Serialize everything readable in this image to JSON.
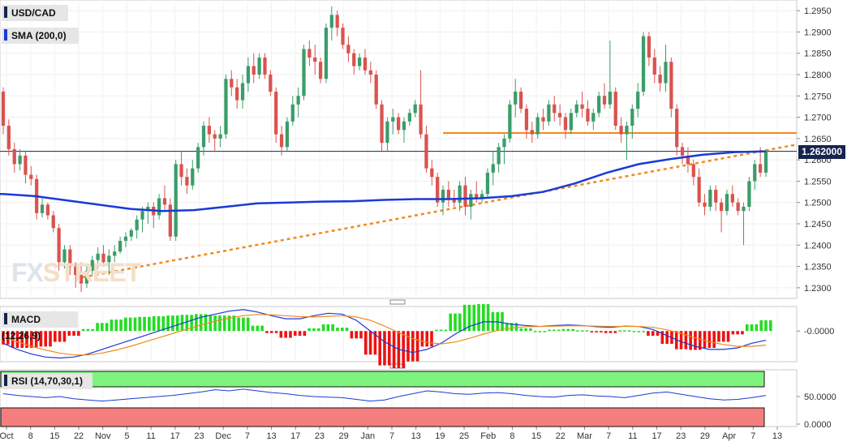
{
  "chart_data": [
    {
      "type": "candlestick",
      "title": "USD/CAD",
      "indicator_label": "SMA (200,0)",
      "price_tag": "1.262000",
      "ylim": [
        1.2275,
        1.2975
      ],
      "y_ticks": [
        "1.2950",
        "1.2900",
        "1.2850",
        "1.2800",
        "1.2750",
        "1.2700",
        "1.2650",
        "1.2600",
        "1.2550",
        "1.2500",
        "1.2450",
        "1.2400",
        "1.2350",
        "1.2300"
      ],
      "x_labels": [
        "Oct",
        "8",
        "15",
        "22",
        "Nov",
        "5",
        "11",
        "17",
        "23",
        "Dec",
        "7",
        "13",
        "17",
        "23",
        "29",
        "Jan",
        "7",
        "13",
        "19",
        "25",
        "Feb",
        "8",
        "15",
        "22",
        "Mar",
        "7",
        "11",
        "17",
        "23",
        "29",
        "Apr",
        "7",
        "13"
      ],
      "candles": [
        [
          1.276,
          1.277,
          1.266,
          1.268
        ],
        [
          1.268,
          1.2695,
          1.261,
          1.2625
        ],
        [
          1.2625,
          1.264,
          1.257,
          1.259
        ],
        [
          1.259,
          1.2625,
          1.2575,
          1.261
        ],
        [
          1.261,
          1.262,
          1.2545,
          1.2565
        ],
        [
          1.2565,
          1.2585,
          1.254,
          1.2555
        ],
        [
          1.2555,
          1.2565,
          1.246,
          1.2475
        ],
        [
          1.2475,
          1.251,
          1.2465,
          1.2495
        ],
        [
          1.2495,
          1.25,
          1.246,
          1.247
        ],
        [
          1.247,
          1.248,
          1.243,
          1.244
        ],
        [
          1.244,
          1.245,
          1.234,
          1.236
        ],
        [
          1.236,
          1.24,
          1.2345,
          1.239
        ],
        [
          1.239,
          1.24,
          1.233,
          1.235
        ],
        [
          1.235,
          1.236,
          1.23,
          1.233
        ],
        [
          1.233,
          1.236,
          1.229,
          1.231
        ],
        [
          1.231,
          1.235,
          1.23,
          1.234
        ],
        [
          1.234,
          1.2375,
          1.233,
          1.2365
        ],
        [
          1.2365,
          1.2395,
          1.2345,
          1.238
        ],
        [
          1.238,
          1.24,
          1.235,
          1.236
        ],
        [
          1.236,
          1.239,
          1.233,
          1.2375
        ],
        [
          1.2375,
          1.24,
          1.236,
          1.2385
        ],
        [
          1.2385,
          1.242,
          1.238,
          1.241
        ],
        [
          1.241,
          1.243,
          1.2395,
          1.242
        ],
        [
          1.242,
          1.244,
          1.241,
          1.2435
        ],
        [
          1.2435,
          1.247,
          1.2415,
          1.246
        ],
        [
          1.246,
          1.249,
          1.243,
          1.248
        ],
        [
          1.248,
          1.25,
          1.245,
          1.249
        ],
        [
          1.249,
          1.25,
          1.244,
          1.247
        ],
        [
          1.247,
          1.252,
          1.246,
          1.251
        ],
        [
          1.251,
          1.254,
          1.248,
          1.2495
        ],
        [
          1.2495,
          1.251,
          1.241,
          1.242
        ],
        [
          1.242,
          1.26,
          1.241,
          1.259
        ],
        [
          1.259,
          1.262,
          1.254,
          1.256
        ],
        [
          1.256,
          1.258,
          1.252,
          1.254
        ],
        [
          1.254,
          1.26,
          1.253,
          1.258
        ],
        [
          1.258,
          1.264,
          1.257,
          1.263
        ],
        [
          1.263,
          1.269,
          1.261,
          1.268
        ],
        [
          1.268,
          1.27,
          1.264,
          1.266
        ],
        [
          1.266,
          1.267,
          1.262,
          1.265
        ],
        [
          1.265,
          1.268,
          1.263,
          1.266
        ],
        [
          1.266,
          1.28,
          1.265,
          1.279
        ],
        [
          1.279,
          1.281,
          1.275,
          1.277
        ],
        [
          1.277,
          1.279,
          1.272,
          1.274
        ],
        [
          1.274,
          1.28,
          1.272,
          1.278
        ],
        [
          1.278,
          1.284,
          1.276,
          1.282
        ],
        [
          1.282,
          1.285,
          1.278,
          1.28
        ],
        [
          1.28,
          1.285,
          1.279,
          1.284
        ],
        [
          1.284,
          1.285,
          1.279,
          1.28
        ],
        [
          1.28,
          1.281,
          1.275,
          1.276
        ],
        [
          1.276,
          1.277,
          1.264,
          1.266
        ],
        [
          1.266,
          1.268,
          1.261,
          1.263
        ],
        [
          1.263,
          1.27,
          1.262,
          1.269
        ],
        [
          1.269,
          1.275,
          1.268,
          1.273
        ],
        [
          1.273,
          1.277,
          1.27,
          1.275
        ],
        [
          1.275,
          1.287,
          1.274,
          1.286
        ],
        [
          1.286,
          1.288,
          1.282,
          1.284
        ],
        [
          1.284,
          1.287,
          1.28,
          1.283
        ],
        [
          1.283,
          1.284,
          1.278,
          1.279
        ],
        [
          1.279,
          1.292,
          1.278,
          1.291
        ],
        [
          1.291,
          1.296,
          1.288,
          1.294
        ],
        [
          1.294,
          1.295,
          1.289,
          1.291
        ],
        [
          1.291,
          1.292,
          1.286,
          1.287
        ],
        [
          1.287,
          1.289,
          1.283,
          1.285
        ],
        [
          1.285,
          1.286,
          1.28,
          1.282
        ],
        [
          1.282,
          1.285,
          1.281,
          1.284
        ],
        [
          1.284,
          1.286,
          1.28,
          1.281
        ],
        [
          1.281,
          1.283,
          1.278,
          1.28
        ],
        [
          1.28,
          1.281,
          1.272,
          1.273
        ],
        [
          1.273,
          1.274,
          1.262,
          1.264
        ],
        [
          1.264,
          1.27,
          1.262,
          1.269
        ],
        [
          1.269,
          1.272,
          1.266,
          1.27
        ],
        [
          1.27,
          1.271,
          1.266,
          1.267
        ],
        [
          1.267,
          1.27,
          1.264,
          1.269
        ],
        [
          1.269,
          1.272,
          1.268,
          1.271
        ],
        [
          1.271,
          1.274,
          1.27,
          1.273
        ],
        [
          1.273,
          1.281,
          1.265,
          1.266
        ],
        [
          1.266,
          1.268,
          1.257,
          1.258
        ],
        [
          1.258,
          1.26,
          1.254,
          1.256
        ],
        [
          1.256,
          1.257,
          1.249,
          1.25
        ],
        [
          1.25,
          1.254,
          1.247,
          1.253
        ],
        [
          1.253,
          1.255,
          1.249,
          1.251
        ],
        [
          1.251,
          1.253,
          1.249,
          1.25
        ],
        [
          1.25,
          1.255,
          1.248,
          1.254
        ],
        [
          1.254,
          1.256,
          1.247,
          1.249
        ],
        [
          1.249,
          1.253,
          1.246,
          1.252
        ],
        [
          1.252,
          1.255,
          1.25,
          1.251
        ],
        [
          1.251,
          1.253,
          1.25,
          1.252
        ],
        [
          1.252,
          1.258,
          1.251,
          1.257
        ],
        [
          1.257,
          1.262,
          1.254,
          1.259
        ],
        [
          1.259,
          1.264,
          1.257,
          1.263
        ],
        [
          1.263,
          1.266,
          1.259,
          1.265
        ],
        [
          1.265,
          1.274,
          1.264,
          1.273
        ],
        [
          1.273,
          1.279,
          1.27,
          1.276
        ],
        [
          1.276,
          1.277,
          1.271,
          1.272
        ],
        [
          1.272,
          1.273,
          1.265,
          1.267
        ],
        [
          1.267,
          1.269,
          1.264,
          1.266
        ],
        [
          1.266,
          1.271,
          1.265,
          1.27
        ],
        [
          1.27,
          1.272,
          1.267,
          1.269
        ],
        [
          1.269,
          1.274,
          1.268,
          1.273
        ],
        [
          1.273,
          1.275,
          1.269,
          1.271
        ],
        [
          1.271,
          1.273,
          1.268,
          1.27
        ],
        [
          1.27,
          1.271,
          1.265,
          1.267
        ],
        [
          1.267,
          1.272,
          1.266,
          1.271
        ],
        [
          1.271,
          1.274,
          1.27,
          1.273
        ],
        [
          1.273,
          1.276,
          1.27,
          1.272
        ],
        [
          1.272,
          1.274,
          1.268,
          1.269
        ],
        [
          1.269,
          1.272,
          1.267,
          1.271
        ],
        [
          1.271,
          1.276,
          1.27,
          1.275
        ],
        [
          1.275,
          1.278,
          1.272,
          1.273
        ],
        [
          1.273,
          1.288,
          1.272,
          1.276
        ],
        [
          1.276,
          1.277,
          1.267,
          1.268
        ],
        [
          1.268,
          1.27,
          1.264,
          1.266
        ],
        [
          1.266,
          1.269,
          1.26,
          1.268
        ],
        [
          1.268,
          1.273,
          1.265,
          1.272
        ],
        [
          1.272,
          1.278,
          1.27,
          1.276
        ],
        [
          1.276,
          1.29,
          1.275,
          1.289
        ],
        [
          1.289,
          1.29,
          1.282,
          1.284
        ],
        [
          1.284,
          1.286,
          1.278,
          1.28
        ],
        [
          1.28,
          1.282,
          1.276,
          1.278
        ],
        [
          1.278,
          1.287,
          1.276,
          1.283
        ],
        [
          1.283,
          1.284,
          1.27,
          1.272
        ],
        [
          1.272,
          1.273,
          1.261,
          1.263
        ],
        [
          1.263,
          1.264,
          1.259,
          1.261
        ],
        [
          1.261,
          1.263,
          1.257,
          1.259
        ],
        [
          1.259,
          1.26,
          1.254,
          1.256
        ],
        [
          1.256,
          1.258,
          1.249,
          1.25
        ],
        [
          1.25,
          1.252,
          1.247,
          1.249
        ],
        [
          1.249,
          1.254,
          1.248,
          1.253
        ],
        [
          1.253,
          1.254,
          1.248,
          1.25
        ],
        [
          1.25,
          1.251,
          1.243,
          1.248
        ],
        [
          1.248,
          1.253,
          1.247,
          1.252
        ],
        [
          1.252,
          1.254,
          1.249,
          1.25
        ],
        [
          1.25,
          1.251,
          1.247,
          1.248
        ],
        [
          1.248,
          1.25,
          1.24,
          1.249
        ],
        [
          1.249,
          1.256,
          1.248,
          1.255
        ],
        [
          1.255,
          1.26,
          1.253,
          1.259
        ],
        [
          1.259,
          1.263,
          1.256,
          1.257
        ],
        [
          1.257,
          1.2625,
          1.256,
          1.262
        ]
      ],
      "sma200": [
        1.252,
        1.2515,
        1.2505,
        1.2495,
        1.2485,
        1.248,
        1.2482,
        1.249,
        1.2498,
        1.25,
        1.2502,
        1.2503,
        1.2506,
        1.2508,
        1.2508,
        1.251,
        1.2515,
        1.2525,
        1.2545,
        1.257,
        1.259,
        1.2602,
        1.2612,
        1.2618,
        1.262
      ],
      "trendline": {
        "from": [
          1.229,
          0
        ],
        "to": [
          1.262,
          136
        ]
      },
      "resistance": 1.2663,
      "current": 1.262
    },
    {
      "type": "macd",
      "title": "MACD (12,26,9)",
      "y_ticks": [
        "-0.0000"
      ],
      "macd": [
        -0.004,
        -0.006,
        -0.0075,
        -0.0085,
        -0.0088,
        -0.0085,
        -0.0075,
        -0.006,
        -0.0045,
        -0.003,
        -0.0015,
        0.0,
        0.0015,
        0.003,
        0.0045,
        0.0055,
        0.0065,
        0.007,
        0.0062,
        0.005,
        0.004,
        0.004,
        0.005,
        0.0058,
        0.0055,
        0.0035,
        0.0,
        -0.0035,
        -0.006,
        -0.007,
        -0.006,
        -0.004,
        -0.001,
        0.0015,
        0.003,
        0.003,
        0.0022,
        0.0018,
        0.0015,
        0.0018,
        0.002,
        0.0018,
        0.0014,
        0.0012,
        0.0016,
        0.0015,
        0.0005,
        -0.0015,
        -0.0035,
        -0.005,
        -0.006,
        -0.006,
        -0.0055,
        -0.004,
        -0.003
      ],
      "signal": [
        -0.002,
        -0.0035,
        -0.005,
        -0.0062,
        -0.0072,
        -0.0078,
        -0.0078,
        -0.0072,
        -0.0062,
        -0.005,
        -0.0036,
        -0.0022,
        -0.0008,
        0.0006,
        0.002,
        0.0032,
        0.0042,
        0.005,
        0.0054,
        0.0053,
        0.005,
        0.0047,
        0.0046,
        0.0048,
        0.005,
        0.0046,
        0.0035,
        0.0016,
        -0.0005,
        -0.0025,
        -0.0037,
        -0.0042,
        -0.0036,
        -0.0024,
        -0.001,
        0.0002,
        0.001,
        0.0014,
        0.0015,
        0.0016,
        0.0017,
        0.0017,
        0.0016,
        0.0015,
        0.0015,
        0.0015,
        0.0012,
        0.0004,
        -0.0008,
        -0.0022,
        -0.0035,
        -0.0044,
        -0.005,
        -0.005,
        -0.0046
      ]
    },
    {
      "type": "rsi",
      "title": "RSI (14,70,30,1)",
      "y_ticks": [
        "50.0000",
        "0.0000"
      ],
      "overbought": 70,
      "oversold": 30,
      "rsi": [
        55,
        52,
        50,
        48,
        50,
        46,
        44,
        42,
        44,
        46,
        48,
        50,
        52,
        55,
        58,
        62,
        60,
        63,
        60,
        57,
        55,
        52,
        50,
        49,
        48,
        45,
        42,
        44,
        50,
        55,
        60,
        58,
        55,
        54,
        56,
        57,
        55,
        52,
        50,
        49,
        52,
        53,
        51,
        50,
        48,
        52,
        56,
        58,
        54,
        50,
        46,
        44,
        45,
        48,
        52
      ]
    }
  ]
}
